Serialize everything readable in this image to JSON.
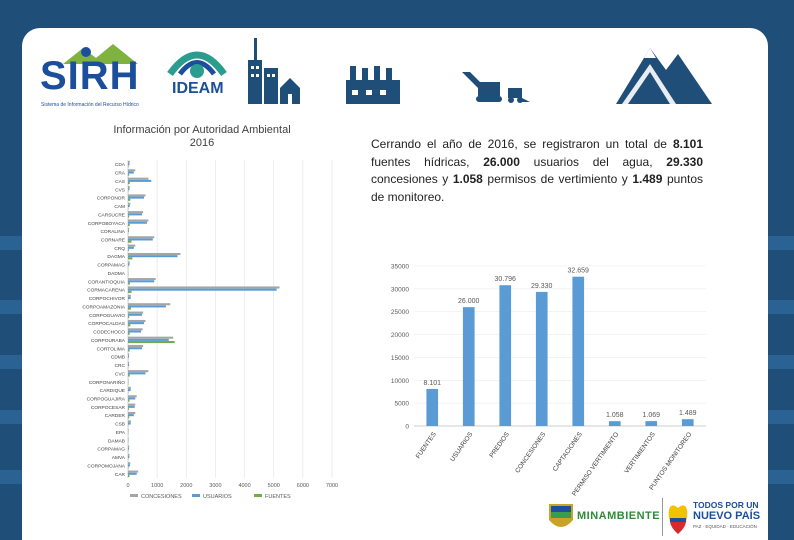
{
  "header": {
    "sirh_logo_text": "SIRH",
    "sirh_tagline": "Sistema de Información del Recurso Hídrico",
    "ideam_logo_text": "IDEAM"
  },
  "body_text": {
    "p1": "Cerrando el año de 2016, se registraron un total de",
    "v1": "8.101",
    "p2": "fuentes hídricas,",
    "v2": "26.000",
    "p3": "usuarios del agua,",
    "v3": "29.330",
    "p4": "concesiones y",
    "v4": "1.058",
    "p5": "permisos de vertimiento y",
    "v5": "1.489",
    "p6": "puntos de monitoreo."
  },
  "footer": {
    "minambiente": "MINAMBIENTE",
    "todos_line1": "TODOS POR UN",
    "todos_line2": "NUEVO PAÍS",
    "todos_line3": "PAZ · EQUIDAD · EDUCACIÓN"
  },
  "colors": {
    "background": "#1f4e79",
    "bar_blue": "#5b9bd5",
    "green": "#70ad47",
    "grey_text": "#595959"
  },
  "chart_data": [
    {
      "type": "bar",
      "orientation": "horizontal",
      "title": "Información por Autoridad Ambiental 2016",
      "xlim": [
        0,
        7000
      ],
      "xticks": [
        0,
        1000,
        2000,
        3000,
        4000,
        5000,
        6000,
        7000
      ],
      "legend": [
        "CONCESIONES",
        "USUARIOS",
        "FUENTES"
      ],
      "legend_position": "bottom",
      "categories": [
        "CDA",
        "CRA",
        "CAS",
        "CVS",
        "CORPONOR",
        "CAM",
        "CARSUCRE",
        "CORPOBOYACA",
        "CORALINA",
        "CORNARE",
        "CRQ",
        "DAGMA",
        "CORPAMAG",
        "DADMA",
        "CORANTIOQUIA",
        "CORMACARENA",
        "CORPOCHIVOR",
        "CORPOAMAZONIA",
        "CORPOGUAVIO",
        "CORPOCALDAS",
        "CODECHOCO",
        "CORPOURABA",
        "CORTOLIMA",
        "CDMB",
        "CRC",
        "CVC",
        "CORPONARIÑO",
        "CARDIQUE",
        "CORPOGUAJIRA",
        "CORPOCESAR",
        "CARDER",
        "CSB",
        "EPA",
        "DAMAB",
        "CORPAMAG",
        "AMVA",
        "CORPOMOJANA",
        "CAR"
      ],
      "series": [
        {
          "name": "CONCESIONES",
          "color": "#a5a5a5",
          "values": [
            60,
            250,
            700,
            60,
            600,
            80,
            520,
            700,
            40,
            900,
            250,
            1800,
            60,
            10,
            950,
            5200,
            100,
            1450,
            520,
            600,
            500,
            1550,
            520,
            40,
            40,
            700,
            20,
            100,
            300,
            250,
            250,
            100,
            20,
            20,
            40,
            50,
            80,
            350
          ]
        },
        {
          "name": "USUARIOS",
          "color": "#5b9bd5",
          "values": [
            50,
            200,
            800,
            50,
            550,
            60,
            480,
            650,
            30,
            850,
            200,
            1700,
            50,
            10,
            900,
            5100,
            90,
            1300,
            480,
            550,
            450,
            1400,
            480,
            35,
            35,
            600,
            15,
            90,
            250,
            230,
            200,
            90,
            15,
            15,
            35,
            45,
            70,
            300
          ]
        },
        {
          "name": "FUENTES",
          "color": "#70ad47",
          "values": [
            20,
            40,
            60,
            10,
            80,
            10,
            40,
            60,
            5,
            120,
            30,
            150,
            10,
            2,
            70,
            120,
            10,
            100,
            40,
            80,
            60,
            1600,
            60,
            10,
            10,
            60,
            5,
            10,
            50,
            30,
            40,
            10,
            5,
            5,
            10,
            10,
            20,
            50
          ]
        }
      ]
    },
    {
      "type": "bar",
      "title": "",
      "categories": [
        "FUENTES",
        "USUARIOS",
        "PREDIOS",
        "CONCESIONES",
        "CAPTACIONES",
        "PERMISO VERTIMIENTO",
        "VERTIMIENTOS",
        "PUNTOS MONITOREO"
      ],
      "values": [
        8101,
        26000,
        30796,
        29330,
        32659,
        1058,
        1069,
        1489
      ],
      "data_labels": [
        "8.101",
        "26.000",
        "30.796",
        "29.330",
        "32.659",
        "1.058",
        "1.069",
        "1.489"
      ],
      "ylim": [
        0,
        35000
      ],
      "yticks": [
        0,
        5000,
        10000,
        15000,
        20000,
        25000,
        30000,
        35000
      ],
      "bar_color": "#5b9bd5"
    }
  ]
}
